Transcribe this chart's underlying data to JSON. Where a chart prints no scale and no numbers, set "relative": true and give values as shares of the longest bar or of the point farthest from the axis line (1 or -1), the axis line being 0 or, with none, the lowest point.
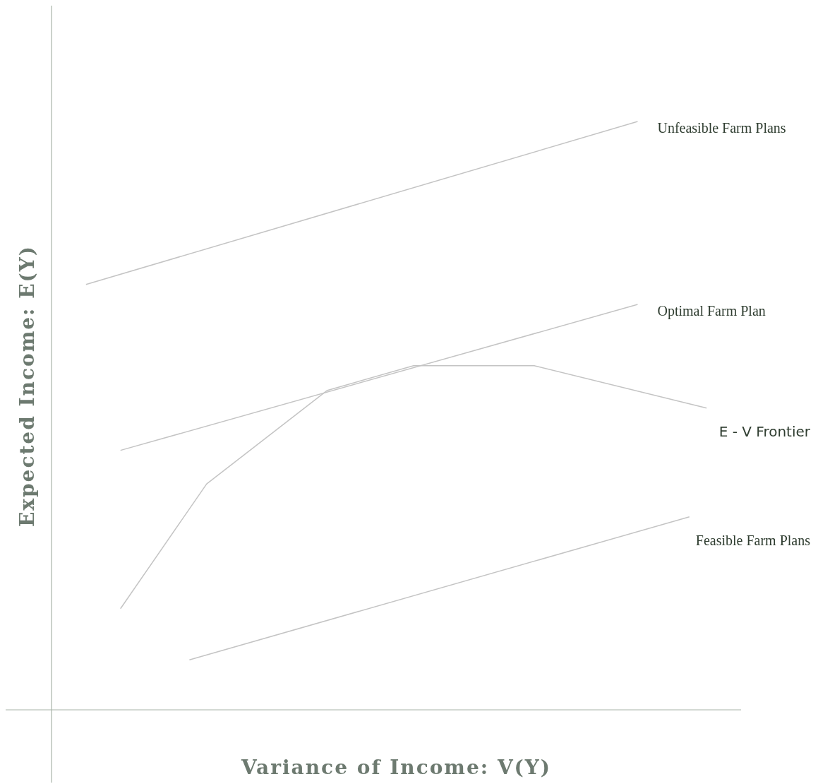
{
  "chart_data": {
    "type": "line",
    "xlabel": "Variance of Income: V(Y)",
    "ylabel": "Expected Income: E(Y)",
    "relative": true,
    "line_style": "solid",
    "categories": [
      null,
      null,
      null,
      null,
      null,
      null,
      null,
      null,
      null,
      null,
      null,
      null,
      null,
      null,
      null,
      null,
      null,
      null,
      null,
      null,
      null,
      null,
      null,
      null,
      null,
      null,
      null,
      null,
      null,
      null,
      null,
      null,
      null,
      null,
      null,
      null,
      null,
      null,
      null,
      null,
      null
    ],
    "series": [
      {
        "name": "Unfeasible Farm Plans",
        "color": "#c4c4c4",
        "values": [
          null,
          null,
          0.723,
          null,
          null,
          null,
          null,
          null,
          null,
          null,
          null,
          null,
          null,
          null,
          null,
          null,
          null,
          null,
          null,
          null,
          null,
          null,
          null,
          null,
          null,
          null,
          null,
          null,
          null,
          null,
          null,
          null,
          null,
          null,
          1.0,
          null,
          null,
          null,
          null,
          null,
          null
        ]
      },
      {
        "name": "Optimal Farm Plan",
        "color": "#c4c4c4",
        "values": [
          null,
          null,
          null,
          null,
          0.441,
          null,
          null,
          null,
          null,
          null,
          null,
          null,
          null,
          null,
          null,
          null,
          null,
          null,
          null,
          null,
          null,
          null,
          null,
          null,
          null,
          null,
          null,
          null,
          null,
          null,
          null,
          null,
          null,
          null,
          0.689,
          null,
          null,
          null,
          null,
          null,
          null
        ]
      },
      {
        "name": "E - V  Frontier",
        "color": "#c4c4c4",
        "values": [
          null,
          null,
          null,
          null,
          0.172,
          null,
          null,
          null,
          null,
          0.384,
          null,
          null,
          null,
          null,
          null,
          null,
          0.543,
          null,
          null,
          null,
          null,
          0.585,
          null,
          null,
          null,
          null,
          null,
          null,
          0.585,
          null,
          null,
          null,
          null,
          null,
          null,
          null,
          null,
          null,
          0.513,
          null,
          null
        ]
      },
      {
        "name": "Feasible Farm Plans",
        "color": "#c4c4c4",
        "values": [
          null,
          null,
          null,
          null,
          null,
          null,
          null,
          null,
          0.085,
          null,
          null,
          null,
          null,
          null,
          null,
          null,
          null,
          null,
          null,
          null,
          null,
          null,
          null,
          null,
          null,
          null,
          null,
          null,
          null,
          null,
          null,
          null,
          null,
          null,
          null,
          null,
          null,
          0.328,
          null,
          null,
          null
        ]
      }
    ]
  }
}
